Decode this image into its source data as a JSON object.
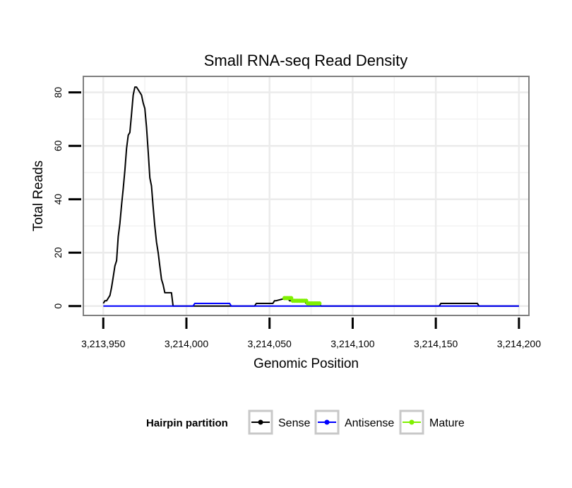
{
  "chart_data": {
    "type": "line",
    "title": "Small RNA-seq Read Density",
    "xlabel": "Genomic Position",
    "ylabel": "Total Reads",
    "xlim": [
      3213938,
      3214206
    ],
    "ylim": [
      -3.5,
      86
    ],
    "x_ticks": [
      3213950,
      3214000,
      3214050,
      3214100,
      3214150,
      3214200
    ],
    "x_tick_labels": [
      "3,213,950",
      "3,214,000",
      "3,214,050",
      "3,214,100",
      "3,214,150",
      "3,214,200"
    ],
    "y_ticks": [
      0,
      20,
      40,
      60,
      80
    ],
    "y_tick_labels": [
      "0",
      "20",
      "40",
      "60",
      "80"
    ],
    "grid": true,
    "legend": {
      "title": "Hairpin partition",
      "position": "bottom",
      "entries": [
        "Sense",
        "Antisense",
        "Mature"
      ]
    },
    "series": [
      {
        "name": "Sense",
        "color": "#000000",
        "x": [
          3213950,
          3213951,
          3213952,
          3213953,
          3213954,
          3213955,
          3213956,
          3213957,
          3213958,
          3213959,
          3213960,
          3213961,
          3213962,
          3213963,
          3213964,
          3213965,
          3213966,
          3213967,
          3213968,
          3213969,
          3213970,
          3213971,
          3213972,
          3213973,
          3213974,
          3213975,
          3213976,
          3213977,
          3213978,
          3213979,
          3213980,
          3213981,
          3213982,
          3213983,
          3213984,
          3213985,
          3213986,
          3213987,
          3213988,
          3213989,
          3213990,
          3213991,
          3213992,
          3213993,
          3213994,
          3213995,
          3213996,
          3213997,
          3213998,
          3213999,
          3214000,
          3214001,
          3214002,
          3214003,
          3214004,
          3214005,
          3214006,
          3214026,
          3214027,
          3214041,
          3214042,
          3214043,
          3214052,
          3214053,
          3214054,
          3214060,
          3214061,
          3214062,
          3214063,
          3214070,
          3214071,
          3214072,
          3214073,
          3214080,
          3214081,
          3214152,
          3214153,
          3214154,
          3214175,
          3214176,
          3214177,
          3214200
        ],
        "values": [
          1,
          2,
          2,
          3,
          4,
          7,
          11,
          15,
          17,
          26,
          31,
          38,
          44,
          51,
          59,
          64,
          65,
          72,
          79,
          82,
          82,
          81,
          80,
          79,
          76,
          74,
          67,
          58,
          48,
          45,
          37,
          30,
          24,
          20,
          15,
          10,
          8,
          5,
          5,
          5,
          5,
          5,
          0,
          0,
          0,
          0,
          0,
          0,
          0,
          0,
          0,
          0,
          0,
          0,
          0,
          0,
          0,
          0,
          0,
          0,
          1,
          1,
          1,
          2,
          2,
          3,
          3,
          2,
          2,
          2,
          2,
          1,
          1,
          1,
          0,
          0,
          1,
          1,
          1,
          0,
          0,
          0
        ]
      },
      {
        "name": "Antisense",
        "color": "#0000ff",
        "x": [
          3213950,
          3214003,
          3214004,
          3214005,
          3214025,
          3214026,
          3214027,
          3214200
        ],
        "values": [
          0,
          0,
          0,
          1,
          1,
          1,
          0,
          0
        ]
      },
      {
        "name": "Mature",
        "color": "#7ff000",
        "x": [
          3214059,
          3214060,
          3214061,
          3214062,
          3214063,
          3214064,
          3214065,
          3214066,
          3214067,
          3214068,
          3214069,
          3214070,
          3214071,
          3214072,
          3214073,
          3214074,
          3214075,
          3214076,
          3214077,
          3214078,
          3214079,
          3214080
        ],
        "values": [
          3,
          3,
          3,
          3,
          3,
          2,
          2,
          2,
          2,
          2,
          2,
          2,
          2,
          2,
          1,
          1,
          1,
          1,
          1,
          1,
          1,
          1
        ]
      }
    ]
  }
}
